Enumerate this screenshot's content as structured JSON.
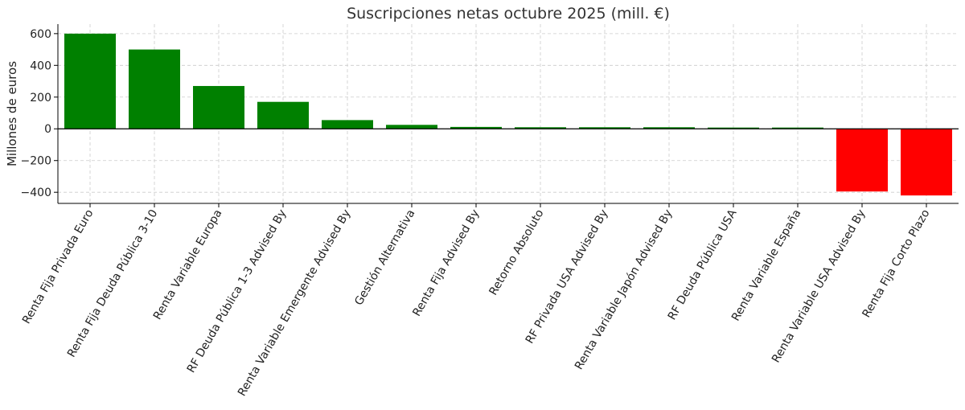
{
  "chart_data": {
    "type": "bar",
    "title": "Suscripciones netas octubre 2025 (mill. €)",
    "ylabel": "Millones de euros",
    "xlabel": "",
    "ylim": [
      -470,
      660
    ],
    "yticks": [
      -400,
      -200,
      0,
      200,
      400,
      600
    ],
    "grid": true,
    "categories": [
      "Renta Fija Privada Euro",
      "Renta Fija Deuda Pública 3-10",
      "Renta Variable Europa",
      "RF Deuda Pública 1-3 Advised By",
      "Renta Variable Emergente Advised By",
      "Gestión Alternativa",
      "Renta Fija Advised By",
      "Retorno Absoluto",
      "RF Privada USA Advised By",
      "Renta Variable Japón Advised By",
      "RF Deuda Pública USA",
      "Renta Variable España",
      "Renta Variable USA Advised By",
      "Renta Fija Corto Plazo"
    ],
    "values": [
      600,
      500,
      270,
      170,
      55,
      25,
      12,
      10,
      10,
      10,
      8,
      8,
      -395,
      -420
    ],
    "colors": {
      "positive": "#008000",
      "negative": "#ff0000"
    }
  }
}
